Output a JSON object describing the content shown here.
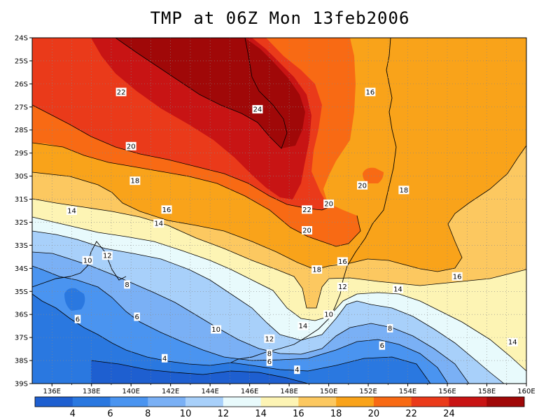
{
  "title": "TMP at 06Z Mon 13feb2006",
  "map": {
    "lon_ticks": [
      "136E",
      "138E",
      "140E",
      "142E",
      "144E",
      "146E",
      "148E",
      "150E",
      "152E",
      "154E",
      "156E",
      "158E",
      "160E"
    ],
    "lat_ticks": [
      "24S",
      "25S",
      "26S",
      "27S",
      "28S",
      "29S",
      "30S",
      "31S",
      "32S",
      "33S",
      "34S",
      "35S",
      "36S",
      "37S",
      "38S",
      "39S"
    ],
    "contour_labels": [
      {
        "text": "22",
        "lon": 139.5,
        "lat": -26.35
      },
      {
        "text": "24",
        "lon": 146.4,
        "lat": -27.1
      },
      {
        "text": "16",
        "lon": 152.1,
        "lat": -26.35
      },
      {
        "text": "20",
        "lon": 140.0,
        "lat": -28.7
      },
      {
        "text": "18",
        "lon": 140.2,
        "lat": -30.2
      },
      {
        "text": "20",
        "lon": 151.7,
        "lat": -30.4
      },
      {
        "text": "18",
        "lon": 153.8,
        "lat": -30.6
      },
      {
        "text": "14",
        "lon": 137.0,
        "lat": -31.5
      },
      {
        "text": "16",
        "lon": 141.8,
        "lat": -31.45
      },
      {
        "text": "22",
        "lon": 148.9,
        "lat": -31.45
      },
      {
        "text": "20",
        "lon": 150.0,
        "lat": -31.2
      },
      {
        "text": "14",
        "lon": 141.4,
        "lat": -32.05
      },
      {
        "text": "20",
        "lon": 148.9,
        "lat": -32.35
      },
      {
        "text": "12",
        "lon": 138.8,
        "lat": -33.45
      },
      {
        "text": "10",
        "lon": 137.8,
        "lat": -33.65
      },
      {
        "text": "16",
        "lon": 150.7,
        "lat": -33.7
      },
      {
        "text": "18",
        "lon": 149.4,
        "lat": -34.05
      },
      {
        "text": "16",
        "lon": 156.5,
        "lat": -34.35
      },
      {
        "text": "8",
        "lon": 139.8,
        "lat": -34.7
      },
      {
        "text": "12",
        "lon": 150.7,
        "lat": -34.8
      },
      {
        "text": "14",
        "lon": 153.5,
        "lat": -34.9
      },
      {
        "text": "6",
        "lon": 137.3,
        "lat": -36.2
      },
      {
        "text": "6",
        "lon": 140.3,
        "lat": -36.1
      },
      {
        "text": "10",
        "lon": 150.0,
        "lat": -36.0
      },
      {
        "text": "14",
        "lon": 148.7,
        "lat": -36.5
      },
      {
        "text": "10",
        "lon": 144.3,
        "lat": -36.65
      },
      {
        "text": "8",
        "lon": 153.1,
        "lat": -36.6
      },
      {
        "text": "12",
        "lon": 147.0,
        "lat": -37.05
      },
      {
        "text": "14",
        "lon": 159.3,
        "lat": -37.2
      },
      {
        "text": "6",
        "lon": 152.7,
        "lat": -37.35
      },
      {
        "text": "8",
        "lon": 147.0,
        "lat": -37.7
      },
      {
        "text": "4",
        "lon": 141.7,
        "lat": -37.9
      },
      {
        "text": "6",
        "lon": 147.0,
        "lat": -38.05
      },
      {
        "text": "4",
        "lon": 148.4,
        "lat": -38.4
      }
    ]
  },
  "colorbar": {
    "colors": [
      "#1e5fd0",
      "#2a78e0",
      "#4a94f0",
      "#7ab0f5",
      "#a8d0fa",
      "#e8fafc",
      "#fdf4b4",
      "#fcc860",
      "#f9a31a",
      "#f86a14",
      "#ea3a1a",
      "#c81414",
      "#a00808"
    ],
    "labels": [
      "4",
      "6",
      "8",
      "10",
      "12",
      "14",
      "16",
      "18",
      "20",
      "22",
      "24"
    ]
  }
}
